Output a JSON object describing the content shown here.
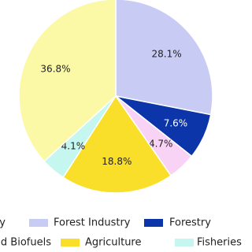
{
  "chart_data": {
    "type": "pie",
    "categories": [
      "Forest Industry",
      "Forestry",
      "d Biofuels",
      "Agriculture",
      "Fisheries",
      "y"
    ],
    "values": [
      28.1,
      7.6,
      4.7,
      18.8,
      4.1,
      36.8
    ],
    "value_labels": [
      "28.1%",
      "7.6%",
      "4.7%",
      "18.8%",
      "4.1%",
      "36.8%"
    ],
    "colors": [
      "#c8ccf4",
      "#0b35a8",
      "#f9d3f5",
      "#f9df2a",
      "#c5f7f0",
      "#fbf9a6"
    ],
    "legend": "bottom"
  }
}
